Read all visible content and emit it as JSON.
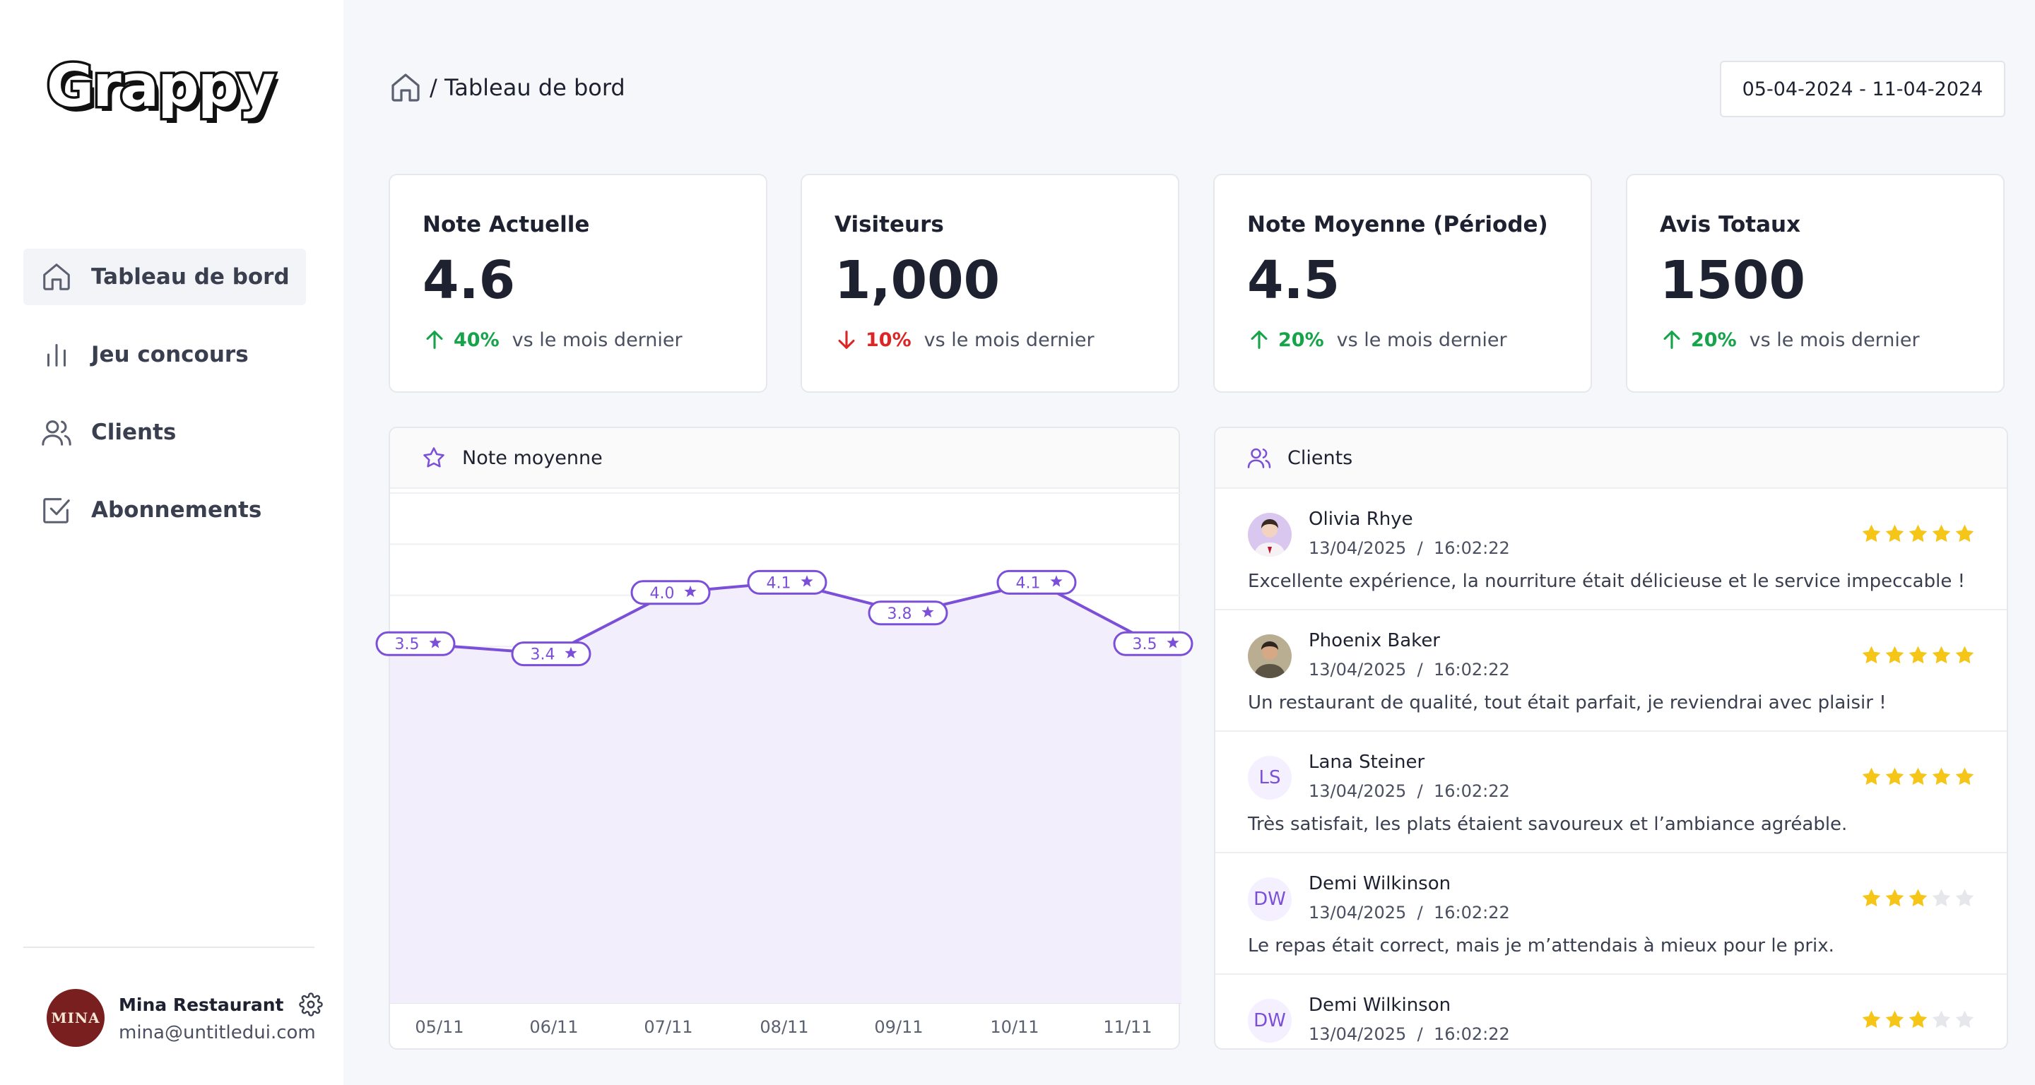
{
  "app": {
    "logo_text": "Grappy"
  },
  "sidebar": {
    "items": [
      {
        "label": "Tableau de bord",
        "icon": "home-icon",
        "active": true
      },
      {
        "label": "Jeu concours",
        "icon": "bar-chart-icon",
        "active": false
      },
      {
        "label": "Clients",
        "icon": "users-icon",
        "active": false
      },
      {
        "label": "Abonnements",
        "icon": "check-square-icon",
        "active": false
      }
    ],
    "profile": {
      "avatar_text": "MINA",
      "name": "Mina Restaurant",
      "email": "mina@untitledui.com"
    }
  },
  "header": {
    "breadcrumb": "/ Tableau de bord",
    "date_range": "05-04-2024 - 11-04-2024"
  },
  "kpis": [
    {
      "title": "Note Actuelle",
      "value": "4.6",
      "delta": "40%",
      "direction": "up",
      "vs": "vs le mois dernier"
    },
    {
      "title": "Visiteurs",
      "value": "1,000",
      "delta": "10%",
      "direction": "down",
      "vs": "vs le mois dernier"
    },
    {
      "title": "Note Moyenne (Période)",
      "value": "4.5",
      "delta": "20%",
      "direction": "up",
      "vs": "vs le mois dernier"
    },
    {
      "title": "Avis Totaux",
      "value": "1500",
      "delta": "20%",
      "direction": "up",
      "vs": "vs le mois dernier"
    }
  ],
  "chart_panel": {
    "title": "Note moyenne"
  },
  "chart_data": {
    "type": "area",
    "categories": [
      "05/11",
      "06/11",
      "07/11",
      "08/11",
      "09/11",
      "10/11",
      "11/11"
    ],
    "values": [
      3.5,
      3.4,
      4.0,
      4.1,
      3.8,
      4.1,
      3.5
    ],
    "data_labels": [
      "3.5",
      "3.4",
      "4.0",
      "4.1",
      "3.8",
      "4.1",
      "3.5"
    ],
    "ylim": [
      0,
      5
    ],
    "grid": true,
    "legend": "none",
    "colors": {
      "line": "#7c4fd8",
      "fill": "#f2eefc"
    }
  },
  "clients_panel": {
    "title": "Clients",
    "reviews": [
      {
        "name": "Olivia Rhye",
        "date": "13/04/2025",
        "time": "16:02:22",
        "rating": 5,
        "text": "Excellente expérience, la nourriture était délicieuse et le service impeccable !",
        "avatar": "photo"
      },
      {
        "name": "Phoenix Baker",
        "date": "13/04/2025",
        "time": "16:02:22",
        "rating": 5,
        "text": "Un restaurant de qualité, tout était parfait, je reviendrai avec plaisir !",
        "avatar": "photo"
      },
      {
        "name": "Lana Steiner",
        "date": "13/04/2025",
        "time": "16:02:22",
        "rating": 5,
        "text": "Très satisfait, les plats étaient savoureux et l’ambiance agréable.",
        "initials": "LS"
      },
      {
        "name": "Demi Wilkinson",
        "date": "13/04/2025",
        "time": "16:02:22",
        "rating": 3,
        "text": "Le repas était correct, mais je m’attendais à mieux pour le prix.",
        "initials": "DW"
      },
      {
        "name": "Demi Wilkinson",
        "date": "13/04/2025",
        "time": "16:02:22",
        "rating": 3,
        "text": "",
        "initials": "DW"
      }
    ]
  },
  "colors": {
    "accent": "#7c4fd8",
    "star": "#f5c518",
    "star_empty": "#e5e7eb",
    "up": "#16a34a",
    "down": "#dc2626"
  }
}
